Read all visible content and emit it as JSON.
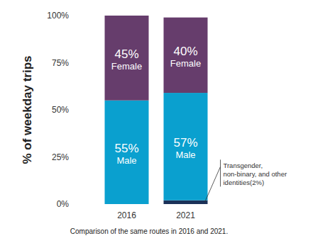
{
  "chart_data": {
    "type": "bar",
    "stacked": true,
    "data_labels": true,
    "grid": false,
    "y_label": "% of weekday trips",
    "caption": "Comparison of the same routes in 2016 and 2021.",
    "categories": [
      "2016",
      "2021"
    ],
    "ylim": [
      0,
      100
    ],
    "yticks": [
      {
        "value": 0,
        "label": "0%"
      },
      {
        "value": 25,
        "label": "25%"
      },
      {
        "value": 50,
        "label": "50%"
      },
      {
        "value": 75,
        "label": "75%"
      },
      {
        "value": 100,
        "label": "100%"
      }
    ],
    "series": [
      {
        "name": "Transgender, non-binary, and other identities",
        "color": "#1b3158",
        "values": [
          null,
          2
        ],
        "value_labels": [
          null,
          "(2%)"
        ]
      },
      {
        "name": "Male",
        "color": "#0aa0cf",
        "values": [
          55,
          57
        ],
        "value_labels": [
          "55%",
          "57%"
        ]
      },
      {
        "name": "Female",
        "color": "#663d6c",
        "values": [
          45,
          40
        ],
        "value_labels": [
          "45%",
          "40%"
        ]
      }
    ]
  }
}
